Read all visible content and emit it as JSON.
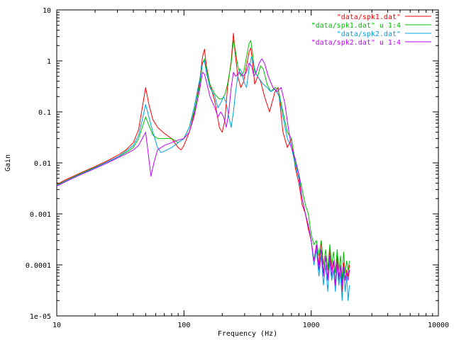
{
  "chart_data": {
    "type": "line",
    "title": "",
    "xlabel": "Frequency (Hz)",
    "ylabel": "Gain",
    "xscale": "log",
    "yscale": "log",
    "xlim": [
      10,
      10000
    ],
    "ylim": [
      1e-05,
      10
    ],
    "x_ticks": [
      10,
      100,
      1000,
      10000
    ],
    "x_tick_labels": [
      "10",
      "100",
      "1000",
      "10000"
    ],
    "y_ticks": [
      1e-05,
      0.0001,
      0.001,
      0.01,
      0.1,
      1,
      10
    ],
    "y_tick_labels": [
      "1e-05",
      "0.0001",
      "0.001",
      "0.01",
      "0.1",
      "1",
      "10"
    ],
    "grid": false,
    "legend_position": "top-right",
    "series": [
      {
        "name": "\"data/spk1.dat\"",
        "color": "#ff0000",
        "points": [
          [
            10,
            0.0038
          ],
          [
            12,
            0.0048
          ],
          [
            15,
            0.0062
          ],
          [
            20,
            0.0085
          ],
          [
            25,
            0.011
          ],
          [
            30,
            0.014
          ],
          [
            35,
            0.018
          ],
          [
            40,
            0.025
          ],
          [
            44,
            0.045
          ],
          [
            47,
            0.12
          ],
          [
            50,
            0.3
          ],
          [
            53,
            0.14
          ],
          [
            57,
            0.07
          ],
          [
            62,
            0.05
          ],
          [
            70,
            0.038
          ],
          [
            80,
            0.03
          ],
          [
            90,
            0.02
          ],
          [
            95,
            0.018
          ],
          [
            100,
            0.022
          ],
          [
            110,
            0.04
          ],
          [
            120,
            0.09
          ],
          [
            132,
            0.35
          ],
          [
            140,
            1.2
          ],
          [
            145,
            1.7
          ],
          [
            150,
            0.8
          ],
          [
            160,
            0.35
          ],
          [
            175,
            0.16
          ],
          [
            190,
            0.05
          ],
          [
            200,
            0.04
          ],
          [
            210,
            0.07
          ],
          [
            220,
            0.3
          ],
          [
            235,
            1.0
          ],
          [
            245,
            3.5
          ],
          [
            252,
            1.5
          ],
          [
            265,
            0.5
          ],
          [
            280,
            0.3
          ],
          [
            295,
            0.4
          ],
          [
            310,
            0.8
          ],
          [
            325,
            1.5
          ],
          [
            335,
            1.8
          ],
          [
            345,
            1.0
          ],
          [
            360,
            0.35
          ],
          [
            380,
            0.5
          ],
          [
            400,
            0.4
          ],
          [
            430,
            0.2
          ],
          [
            470,
            0.1
          ],
          [
            520,
            0.25
          ],
          [
            550,
            0.3
          ],
          [
            600,
            0.04
          ],
          [
            650,
            0.02
          ],
          [
            700,
            0.03
          ],
          [
            750,
            0.008
          ],
          [
            800,
            0.004
          ],
          [
            850,
            0.0015
          ],
          [
            900,
            0.001
          ],
          [
            950,
            0.0005
          ],
          [
            1000,
            0.0003
          ],
          [
            1050,
            0.00012
          ],
          [
            1100,
            0.00025
          ],
          [
            1150,
            0.0001
          ],
          [
            1200,
            0.0003
          ],
          [
            1250,
            7e-05
          ],
          [
            1300,
            0.00015
          ],
          [
            1350,
            5e-05
          ],
          [
            1400,
            0.0002
          ],
          [
            1450,
            8e-05
          ],
          [
            1500,
            0.00012
          ],
          [
            1550,
            4e-05
          ],
          [
            1600,
            0.00015
          ],
          [
            1650,
            6e-05
          ],
          [
            1700,
            9e-05
          ],
          [
            1750,
            3e-05
          ],
          [
            1800,
            0.00011
          ],
          [
            1850,
            5e-05
          ],
          [
            1900,
            8e-05
          ],
          [
            1950,
            6e-05
          ],
          [
            2000,
            0.0001
          ]
        ]
      },
      {
        "name": "\"data/spk1.dat\" u 1:4",
        "color": "#00bf00",
        "points": [
          [
            10,
            0.0037
          ],
          [
            12,
            0.0046
          ],
          [
            15,
            0.006
          ],
          [
            20,
            0.0082
          ],
          [
            25,
            0.0105
          ],
          [
            30,
            0.013
          ],
          [
            35,
            0.016
          ],
          [
            40,
            0.02
          ],
          [
            44,
            0.03
          ],
          [
            47,
            0.05
          ],
          [
            50,
            0.08
          ],
          [
            53,
            0.055
          ],
          [
            57,
            0.035
          ],
          [
            62,
            0.03
          ],
          [
            70,
            0.03
          ],
          [
            80,
            0.03
          ],
          [
            90,
            0.025
          ],
          [
            100,
            0.03
          ],
          [
            110,
            0.05
          ],
          [
            120,
            0.1
          ],
          [
            132,
            0.3
          ],
          [
            140,
            0.9
          ],
          [
            145,
            1.1
          ],
          [
            150,
            0.7
          ],
          [
            160,
            0.35
          ],
          [
            175,
            0.22
          ],
          [
            190,
            0.18
          ],
          [
            200,
            0.18
          ],
          [
            210,
            0.22
          ],
          [
            220,
            0.35
          ],
          [
            235,
            0.9
          ],
          [
            245,
            2.5
          ],
          [
            252,
            1.8
          ],
          [
            265,
            0.8
          ],
          [
            280,
            0.5
          ],
          [
            295,
            0.6
          ],
          [
            310,
            1.2
          ],
          [
            325,
            2.2
          ],
          [
            335,
            2.5
          ],
          [
            345,
            1.5
          ],
          [
            360,
            0.6
          ],
          [
            380,
            0.5
          ],
          [
            400,
            0.8
          ],
          [
            420,
            0.7
          ],
          [
            450,
            0.35
          ],
          [
            480,
            0.25
          ],
          [
            520,
            0.3
          ],
          [
            550,
            0.28
          ],
          [
            600,
            0.1
          ],
          [
            650,
            0.04
          ],
          [
            700,
            0.03
          ],
          [
            750,
            0.01
          ],
          [
            800,
            0.006
          ],
          [
            850,
            0.003
          ],
          [
            900,
            0.0015
          ],
          [
            950,
            0.001
          ],
          [
            1000,
            0.0004
          ],
          [
            1050,
            0.00025
          ],
          [
            1100,
            0.0003
          ],
          [
            1150,
            0.00015
          ],
          [
            1200,
            0.0003
          ],
          [
            1250,
            0.0001
          ],
          [
            1300,
            0.0002
          ],
          [
            1350,
            8e-05
          ],
          [
            1400,
            0.00025
          ],
          [
            1450,
            0.0001
          ],
          [
            1500,
            0.00018
          ],
          [
            1550,
            7e-05
          ],
          [
            1600,
            0.0002
          ],
          [
            1650,
            8e-05
          ],
          [
            1700,
            0.00015
          ],
          [
            1750,
            5e-05
          ],
          [
            1800,
            0.00018
          ],
          [
            1850,
            7e-05
          ],
          [
            1900,
            0.00012
          ],
          [
            1950,
            8e-05
          ],
          [
            2000,
            0.00012
          ]
        ]
      },
      {
        "name": "\"data/spk2.dat\"",
        "color": "#00a0e0",
        "points": [
          [
            10,
            0.0036
          ],
          [
            12,
            0.0045
          ],
          [
            15,
            0.0058
          ],
          [
            20,
            0.008
          ],
          [
            25,
            0.0105
          ],
          [
            30,
            0.013
          ],
          [
            35,
            0.017
          ],
          [
            40,
            0.022
          ],
          [
            44,
            0.035
          ],
          [
            47,
            0.07
          ],
          [
            50,
            0.14
          ],
          [
            53,
            0.08
          ],
          [
            57,
            0.04
          ],
          [
            62,
            0.02
          ],
          [
            66,
            0.016
          ],
          [
            70,
            0.017
          ],
          [
            80,
            0.02
          ],
          [
            90,
            0.025
          ],
          [
            100,
            0.03
          ],
          [
            110,
            0.05
          ],
          [
            120,
            0.12
          ],
          [
            132,
            0.4
          ],
          [
            140,
            0.9
          ],
          [
            145,
            1.0
          ],
          [
            150,
            0.6
          ],
          [
            160,
            0.3
          ],
          [
            175,
            0.2
          ],
          [
            185,
            0.12
          ],
          [
            195,
            0.15
          ],
          [
            205,
            0.2
          ],
          [
            215,
            0.15
          ],
          [
            225,
            0.08
          ],
          [
            235,
            0.05
          ],
          [
            245,
            0.1
          ],
          [
            255,
            0.25
          ],
          [
            265,
            0.5
          ],
          [
            275,
            0.7
          ],
          [
            285,
            0.6
          ],
          [
            295,
            0.4
          ],
          [
            310,
            0.3
          ],
          [
            325,
            0.7
          ],
          [
            340,
            1.2
          ],
          [
            355,
            0.8
          ],
          [
            370,
            0.55
          ],
          [
            390,
            0.45
          ],
          [
            420,
            0.35
          ],
          [
            450,
            0.3
          ],
          [
            480,
            0.25
          ],
          [
            520,
            0.28
          ],
          [
            560,
            0.2
          ],
          [
            600,
            0.08
          ],
          [
            650,
            0.03
          ],
          [
            700,
            0.02
          ],
          [
            750,
            0.009
          ],
          [
            800,
            0.005
          ],
          [
            850,
            0.002
          ],
          [
            900,
            0.001
          ],
          [
            950,
            0.0006
          ],
          [
            1000,
            0.0003
          ],
          [
            1050,
            0.0001
          ],
          [
            1100,
            0.0002
          ],
          [
            1150,
            6e-05
          ],
          [
            1200,
            0.00015
          ],
          [
            1250,
            4e-05
          ],
          [
            1300,
            0.0001
          ],
          [
            1350,
            3e-05
          ],
          [
            1400,
            0.00012
          ],
          [
            1450,
            5e-05
          ],
          [
            1500,
            8e-05
          ],
          [
            1550,
            3e-05
          ],
          [
            1600,
            0.0001
          ],
          [
            1650,
            4e-05
          ],
          [
            1700,
            7e-05
          ],
          [
            1750,
            2e-05
          ],
          [
            1800,
            8e-05
          ],
          [
            1850,
            3e-05
          ],
          [
            1900,
            6e-05
          ],
          [
            1950,
            2e-05
          ],
          [
            2000,
            4e-05
          ]
        ]
      },
      {
        "name": "\"data/spk2.dat\" u 1:4",
        "color": "#c000ff",
        "points": [
          [
            10,
            0.0035
          ],
          [
            12,
            0.0044
          ],
          [
            15,
            0.0057
          ],
          [
            20,
            0.0078
          ],
          [
            25,
            0.01
          ],
          [
            30,
            0.0125
          ],
          [
            35,
            0.015
          ],
          [
            40,
            0.018
          ],
          [
            44,
            0.022
          ],
          [
            47,
            0.03
          ],
          [
            50,
            0.04
          ],
          [
            53,
            0.012
          ],
          [
            55,
            0.0055
          ],
          [
            58,
            0.01
          ],
          [
            62,
            0.018
          ],
          [
            70,
            0.022
          ],
          [
            80,
            0.025
          ],
          [
            90,
            0.028
          ],
          [
            100,
            0.03
          ],
          [
            110,
            0.04
          ],
          [
            120,
            0.08
          ],
          [
            132,
            0.25
          ],
          [
            140,
            0.6
          ],
          [
            145,
            0.55
          ],
          [
            150,
            0.4
          ],
          [
            160,
            0.2
          ],
          [
            175,
            0.12
          ],
          [
            185,
            0.08
          ],
          [
            195,
            0.1
          ],
          [
            205,
            0.08
          ],
          [
            215,
            0.05
          ],
          [
            225,
            0.1
          ],
          [
            235,
            0.3
          ],
          [
            245,
            0.6
          ],
          [
            255,
            0.5
          ],
          [
            265,
            0.55
          ],
          [
            275,
            0.6
          ],
          [
            290,
            0.5
          ],
          [
            310,
            0.6
          ],
          [
            325,
            0.9
          ],
          [
            340,
            0.8
          ],
          [
            355,
            0.5
          ],
          [
            370,
            0.6
          ],
          [
            390,
            0.9
          ],
          [
            410,
            1.1
          ],
          [
            430,
            0.9
          ],
          [
            460,
            0.5
          ],
          [
            500,
            0.3
          ],
          [
            540,
            0.25
          ],
          [
            580,
            0.3
          ],
          [
            620,
            0.15
          ],
          [
            660,
            0.05
          ],
          [
            700,
            0.02
          ],
          [
            750,
            0.012
          ],
          [
            800,
            0.006
          ],
          [
            850,
            0.002
          ],
          [
            900,
            0.001
          ],
          [
            950,
            0.0006
          ],
          [
            1000,
            0.0003
          ],
          [
            1050,
            0.00012
          ],
          [
            1100,
            0.00025
          ],
          [
            1150,
            8e-05
          ],
          [
            1200,
            0.0002
          ],
          [
            1250,
            6e-05
          ],
          [
            1300,
            0.00015
          ],
          [
            1350,
            5e-05
          ],
          [
            1400,
            0.00015
          ],
          [
            1450,
            6e-05
          ],
          [
            1500,
            0.00012
          ],
          [
            1550,
            4e-05
          ],
          [
            1600,
            0.00012
          ],
          [
            1650,
            5e-05
          ],
          [
            1700,
            0.0001
          ],
          [
            1750,
            4e-05
          ],
          [
            1800,
            9e-05
          ],
          [
            1850,
            5e-05
          ],
          [
            1900,
            7e-05
          ],
          [
            1950,
            5e-05
          ],
          [
            2000,
            8e-05
          ]
        ]
      }
    ]
  }
}
